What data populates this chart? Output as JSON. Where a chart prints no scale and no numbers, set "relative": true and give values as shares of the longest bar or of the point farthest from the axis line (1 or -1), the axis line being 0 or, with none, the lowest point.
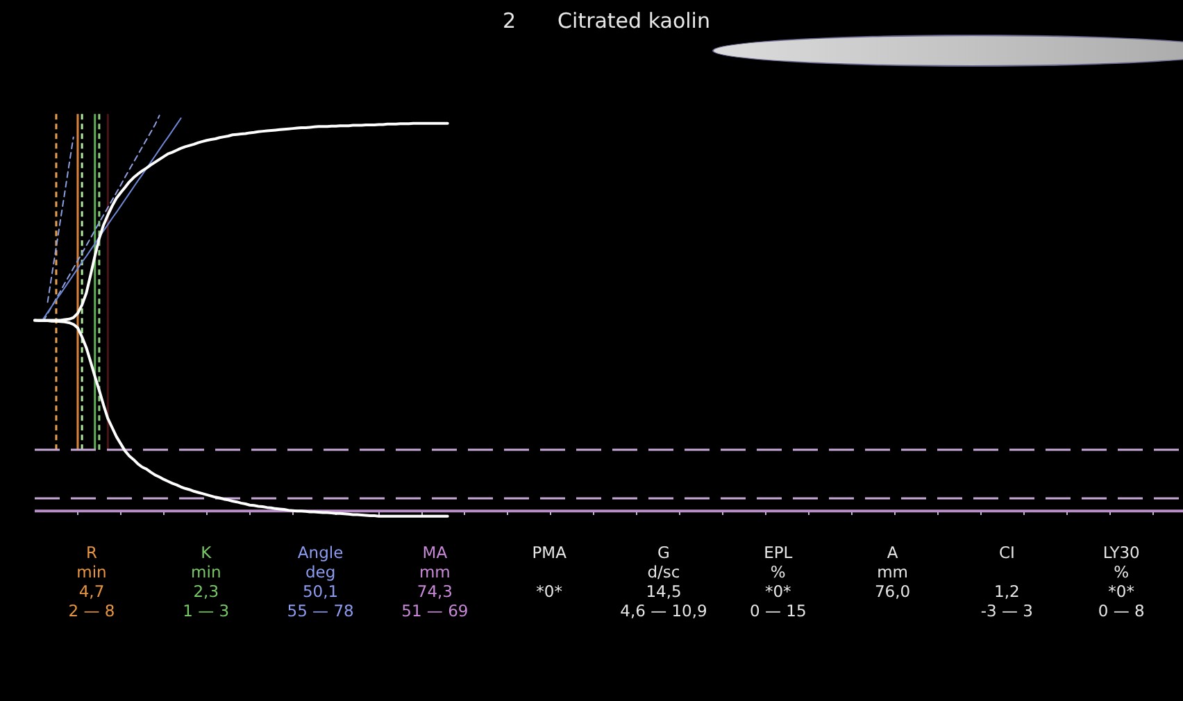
{
  "chart_data": {
    "type": "line",
    "title": "2 Citrated kaolin",
    "relative": true,
    "categories": [
      null,
      null,
      null,
      null,
      null,
      null,
      null,
      null,
      null,
      null,
      null,
      null,
      null,
      null,
      null,
      null,
      null,
      null,
      null,
      null,
      null,
      null,
      null,
      null,
      null,
      null,
      null,
      null,
      null,
      null,
      null,
      null,
      null,
      null,
      null,
      null,
      null,
      null,
      null,
      null,
      null,
      null,
      null,
      null,
      null,
      null,
      null,
      null,
      null,
      null,
      null,
      null,
      null,
      null,
      null,
      null,
      null,
      null,
      null,
      null,
      null,
      null,
      null,
      null,
      null,
      null,
      null,
      null,
      null,
      null,
      null,
      null,
      null,
      null,
      null,
      null,
      null,
      null,
      null,
      null,
      null,
      null,
      null,
      null,
      null,
      null,
      null,
      null,
      null,
      null,
      null,
      null,
      null,
      null,
      null,
      null,
      null,
      null,
      null,
      null,
      null,
      null,
      null,
      null,
      null,
      null,
      null,
      null,
      null,
      null,
      null,
      null,
      null,
      null,
      null,
      null,
      null,
      null,
      null,
      null,
      null,
      null,
      null,
      null,
      null,
      null,
      null,
      null,
      null,
      null,
      null,
      null,
      null,
      null,
      null,
      null,
      null,
      null,
      null,
      null,
      null,
      null,
      null,
      null,
      null,
      null,
      null,
      null,
      null,
      null,
      null,
      null,
      null,
      null,
      null,
      null,
      null,
      null,
      null,
      null,
      null,
      null,
      null,
      null,
      null,
      null,
      null,
      null,
      null,
      null,
      null,
      null,
      null,
      null,
      null,
      null,
      null,
      null,
      null,
      null,
      null,
      null,
      null,
      null,
      null,
      null,
      null,
      null,
      null,
      null,
      null,
      null,
      null,
      null,
      null,
      null,
      null,
      null,
      null,
      null,
      null,
      null,
      null,
      null,
      null,
      null,
      null,
      null,
      null,
      null,
      null,
      null,
      null,
      null,
      null,
      null,
      null,
      null,
      null,
      null,
      null,
      null,
      null,
      null,
      null,
      null,
      null,
      null,
      null,
      null,
      null,
      null,
      null,
      null,
      null,
      null,
      null,
      null,
      null,
      null,
      null,
      null,
      null,
      null,
      null,
      null,
      null,
      null,
      null,
      null,
      null,
      null,
      null,
      null,
      null,
      null,
      null,
      null,
      null,
      null,
      null,
      null,
      null,
      null,
      null,
      null,
      null,
      null
    ],
    "series": [
      {
        "color": "#ffffff",
        "values": [
          0.482,
          0.482,
          0.482,
          0.482,
          0.482,
          0.482,
          0.482,
          0.484,
          0.485,
          0.489,
          0.5,
          0.521,
          0.551,
          0.597,
          0.645,
          0.689,
          0.723,
          0.748,
          0.771,
          0.791,
          0.805,
          0.818,
          0.832,
          0.843,
          0.852,
          0.86,
          0.867,
          0.875,
          0.882,
          0.889,
          0.896,
          0.903,
          0.907,
          0.912,
          0.917,
          0.921,
          0.924,
          0.927,
          0.931,
          0.934,
          0.937,
          0.939,
          0.941,
          0.944,
          0.946,
          0.948,
          0.951,
          0.952,
          0.953,
          0.954,
          0.956,
          0.957,
          0.959,
          0.96,
          0.961,
          0.962,
          0.963,
          0.964,
          0.965,
          0.966,
          0.967,
          0.968,
          0.969,
          0.969,
          0.97,
          0.971,
          0.972,
          0.972,
          0.972,
          0.973,
          0.973,
          0.974,
          0.974,
          0.974,
          0.975,
          0.975,
          0.975,
          0.976,
          0.976,
          0.976,
          0.977,
          0.977,
          0.978,
          0.978,
          0.978,
          0.979,
          0.979,
          0.979,
          0.98,
          0.98,
          0.98,
          0.98,
          0.98,
          0.98,
          0.98,
          0.98,
          0.98,
          null,
          null,
          null,
          null,
          null,
          null,
          null,
          null,
          null,
          null,
          null,
          null,
          null,
          null,
          null,
          null,
          null,
          null,
          null,
          null,
          null,
          null,
          null,
          null,
          null,
          null,
          null,
          null,
          null,
          null,
          null,
          null,
          null,
          null,
          null,
          null,
          null,
          null,
          null,
          null,
          null,
          null,
          null,
          null,
          null,
          null,
          null,
          null,
          null,
          null,
          null,
          null,
          null,
          null,
          null,
          null,
          null,
          null,
          null,
          null,
          null,
          null,
          null,
          null,
          null,
          null,
          null,
          null,
          null,
          null,
          null,
          null,
          null,
          null,
          null,
          null,
          null,
          null,
          null,
          null,
          null,
          null,
          null,
          null,
          null,
          null,
          null,
          null,
          null,
          null,
          null,
          null,
          null,
          null,
          null,
          null,
          null,
          null,
          null,
          null,
          null,
          null,
          null,
          null,
          null,
          null,
          null,
          null,
          null,
          null,
          null,
          null,
          null,
          null,
          null,
          null,
          null,
          null,
          null,
          null,
          null,
          null,
          null,
          null,
          null,
          null,
          null,
          null,
          null,
          null,
          null,
          null,
          null,
          null,
          null,
          null,
          null,
          null,
          null,
          null,
          null,
          null,
          null,
          null,
          null,
          null,
          null,
          null,
          null,
          null,
          null,
          null,
          null,
          null,
          null,
          null,
          null,
          null,
          null,
          null,
          null,
          null,
          null,
          null,
          null,
          null,
          null,
          null,
          null,
          null,
          null
        ]
      },
      {
        "color": "#ffffff",
        "values": [
          0.482,
          0.481,
          0.481,
          0.481,
          0.48,
          0.48,
          0.479,
          0.478,
          0.476,
          0.472,
          0.463,
          0.44,
          0.413,
          0.377,
          0.34,
          0.305,
          0.268,
          0.234,
          0.211,
          0.188,
          0.17,
          0.152,
          0.139,
          0.13,
          0.119,
          0.111,
          0.106,
          0.098,
          0.091,
          0.086,
          0.08,
          0.075,
          0.07,
          0.066,
          0.061,
          0.057,
          0.054,
          0.05,
          0.047,
          0.044,
          0.041,
          0.038,
          0.035,
          0.033,
          0.03,
          0.028,
          0.025,
          0.023,
          0.02,
          0.018,
          0.015,
          0.014,
          0.012,
          0.011,
          0.009,
          0.008,
          0.006,
          0.005,
          0.004,
          0.002,
          0.001,
          0.0,
          0.0,
          -0.001,
          -0.002,
          -0.002,
          -0.003,
          -0.004,
          -0.004,
          -0.005,
          -0.006,
          -0.006,
          -0.007,
          -0.008,
          -0.009,
          -0.009,
          -0.01,
          -0.011,
          -0.012,
          -0.012,
          -0.013,
          -0.013,
          -0.013,
          -0.013,
          -0.013,
          -0.013,
          -0.013,
          -0.013,
          -0.013,
          -0.013,
          -0.013,
          -0.013,
          -0.013,
          -0.013,
          -0.013,
          -0.013,
          -0.013,
          null,
          null,
          null,
          null,
          null,
          null,
          null,
          null,
          null,
          null,
          null,
          null,
          null,
          null,
          null,
          null,
          null,
          null,
          null,
          null,
          null,
          null,
          null,
          null,
          null,
          null,
          null,
          null,
          null,
          null,
          null,
          null,
          null,
          null,
          null,
          null,
          null,
          null,
          null,
          null,
          null,
          null,
          null,
          null,
          null,
          null,
          null,
          null,
          null,
          null,
          null,
          null,
          null,
          null,
          null,
          null,
          null,
          null,
          null,
          null,
          null,
          null,
          null,
          null,
          null,
          null,
          null,
          null,
          null,
          null,
          null,
          null,
          null,
          null,
          null,
          null,
          null,
          null,
          null,
          null,
          null,
          null,
          null,
          null,
          null,
          null,
          null,
          null,
          null,
          null,
          null,
          null,
          null,
          null,
          null,
          null,
          null,
          null,
          null,
          null,
          null,
          null,
          null,
          null,
          null,
          null,
          null,
          null,
          null,
          null,
          null,
          null,
          null,
          null,
          null,
          null,
          null,
          null,
          null,
          null,
          null,
          null,
          null,
          null,
          null,
          null,
          null,
          null,
          null,
          null,
          null,
          null,
          null,
          null,
          null,
          null,
          null,
          null,
          null,
          null,
          null,
          null,
          null,
          null,
          null,
          null,
          null,
          null,
          null,
          null,
          null,
          null,
          null,
          null,
          null,
          null,
          null,
          null,
          null,
          null,
          null,
          null,
          null,
          null,
          null,
          null,
          null,
          null,
          null,
          null,
          null
        ]
      },
      {
        "color": "#7088d8",
        "values": [
          null,
          null,
          0.486,
          0.502,
          0.518,
          0.534,
          0.549,
          0.565,
          0.581,
          0.597,
          0.613,
          0.629,
          0.644,
          0.66,
          0.676,
          0.692,
          0.708,
          0.724,
          0.74,
          0.755,
          0.771,
          0.787,
          0.803,
          0.819,
          0.835,
          0.85,
          0.866,
          0.882,
          0.898,
          0.914,
          0.93,
          0.945,
          0.961,
          0.977,
          0.993,
          null,
          null,
          null,
          null,
          null,
          null,
          null,
          null,
          null,
          null,
          null,
          null,
          null,
          null,
          null,
          null,
          null,
          null,
          null,
          null,
          null,
          null,
          null,
          null,
          null,
          null,
          null,
          null,
          null,
          null,
          null,
          null,
          null,
          null,
          null,
          null,
          null,
          null,
          null,
          null,
          null,
          null,
          null,
          null,
          null,
          null,
          null,
          null,
          null,
          null,
          null,
          null,
          null,
          null,
          null,
          null,
          null,
          null,
          null,
          null,
          null,
          null,
          null,
          null,
          null,
          null,
          null,
          null,
          null,
          null,
          null,
          null,
          null,
          null,
          null,
          null,
          null,
          null,
          null,
          null,
          null,
          null,
          null,
          null,
          null,
          null,
          null,
          null,
          null,
          null,
          null,
          null,
          null,
          null,
          null,
          null,
          null,
          null,
          null,
          null,
          null,
          null,
          null,
          null,
          null,
          null,
          null,
          null,
          null,
          null,
          null,
          null,
          null,
          null,
          null,
          null,
          null,
          null,
          null,
          null,
          null,
          null,
          null,
          null,
          null,
          null,
          null,
          null,
          null,
          null,
          null,
          null,
          null,
          null,
          null,
          null,
          null,
          null,
          null,
          null,
          null,
          null,
          null,
          null,
          null,
          null,
          null,
          null,
          null,
          null,
          null,
          null,
          null,
          null,
          null,
          null,
          null,
          null,
          null,
          null,
          null,
          null,
          null,
          null,
          null,
          null,
          null,
          null,
          null,
          null,
          null,
          null,
          null,
          null,
          null,
          null,
          null,
          null,
          null,
          null,
          null,
          null,
          null,
          null,
          null,
          null,
          null,
          null,
          null,
          null,
          null,
          null,
          null,
          null,
          null,
          null,
          null,
          null,
          null,
          null,
          null,
          null,
          null,
          null,
          null,
          null,
          null,
          null,
          null,
          null,
          null,
          null,
          null,
          null,
          null,
          null,
          null,
          null,
          null,
          null,
          null,
          null,
          null,
          null,
          null,
          null,
          null,
          null,
          null,
          null,
          null,
          null,
          null
        ]
      },
      {
        "color": "#8ea0e0",
        "line_style": "dashed",
        "values": [
          null,
          null,
          0.48,
          0.499,
          0.518,
          0.537,
          0.556,
          0.576,
          0.595,
          0.614,
          0.633,
          0.652,
          0.671,
          0.69,
          0.71,
          0.729,
          0.748,
          0.767,
          0.786,
          0.805,
          0.824,
          0.844,
          0.863,
          0.882,
          0.901,
          0.92,
          0.939,
          0.958,
          0.977,
          1.0,
          null,
          null,
          null,
          null,
          null,
          null,
          null,
          null,
          null,
          null,
          null,
          null,
          null,
          null,
          null,
          null,
          null,
          null,
          null,
          null,
          null,
          null,
          null,
          null,
          null,
          null,
          null,
          null,
          null,
          null,
          null,
          null,
          null,
          null,
          null,
          null,
          null,
          null,
          null,
          null,
          null,
          null,
          null,
          null,
          null,
          null,
          null,
          null,
          null,
          null,
          null,
          null,
          null,
          null,
          null,
          null,
          null,
          null,
          null,
          null,
          null,
          null,
          null,
          null,
          null,
          null,
          null,
          null,
          null,
          null,
          null,
          null,
          null,
          null,
          null,
          null,
          null,
          null,
          null,
          null,
          null,
          null,
          null,
          null,
          null,
          null,
          null,
          null,
          null,
          null,
          null,
          null,
          null,
          null,
          null,
          null,
          null,
          null,
          null,
          null,
          null,
          null,
          null,
          null,
          null,
          null,
          null,
          null,
          null,
          null,
          null,
          null,
          null,
          null,
          null,
          null,
          null,
          null,
          null,
          null,
          null,
          null,
          null,
          null,
          null,
          null,
          null,
          null,
          null,
          null,
          null,
          null,
          null,
          null,
          null,
          null,
          null,
          null,
          null,
          null,
          null,
          null,
          null,
          null,
          null,
          null,
          null,
          null,
          null,
          null,
          null,
          null,
          null,
          null,
          null,
          null,
          null,
          null,
          null,
          null,
          null,
          null,
          null,
          null,
          null,
          null,
          null,
          null,
          null,
          null,
          null,
          null,
          null,
          null,
          null,
          null,
          null,
          null,
          null,
          null,
          null,
          null,
          null,
          null,
          null,
          null,
          null,
          null,
          null,
          null,
          null,
          null,
          null,
          null,
          null,
          null,
          null,
          null,
          null,
          null,
          null,
          null,
          null,
          null,
          null,
          null,
          null,
          null,
          null,
          null,
          null,
          null,
          null,
          null,
          null,
          null,
          null,
          null,
          null,
          null,
          null,
          null,
          null,
          null,
          null,
          null,
          null,
          null,
          null,
          null,
          null,
          null,
          null,
          null,
          null,
          null,
          null,
          null
        ]
      },
      {
        "color": "#8ea0e0",
        "line_style": "dashed",
        "values": [
          null,
          null,
          null,
          0.528,
          0.598,
          0.667,
          0.737,
          0.806,
          0.876,
          0.945,
          null,
          null,
          null,
          null,
          null,
          null,
          null,
          null,
          null,
          null,
          null,
          null,
          null,
          null,
          null,
          null,
          null,
          null,
          null,
          null,
          null,
          null,
          null,
          null,
          null,
          null,
          null,
          null,
          null,
          null,
          null,
          null,
          null,
          null,
          null,
          null,
          null,
          null,
          null,
          null,
          null,
          null,
          null,
          null,
          null,
          null,
          null,
          null,
          null,
          null,
          null,
          null,
          null,
          null,
          null,
          null,
          null,
          null,
          null,
          null,
          null,
          null,
          null,
          null,
          null,
          null,
          null,
          null,
          null,
          null,
          null,
          null,
          null,
          null,
          null,
          null,
          null,
          null,
          null,
          null,
          null,
          null,
          null,
          null,
          null,
          null,
          null,
          null,
          null,
          null,
          null,
          null,
          null,
          null,
          null,
          null,
          null,
          null,
          null,
          null,
          null,
          null,
          null,
          null,
          null,
          null,
          null,
          null,
          null,
          null,
          null,
          null,
          null,
          null,
          null,
          null,
          null,
          null,
          null,
          null,
          null,
          null,
          null,
          null,
          null,
          null,
          null,
          null,
          null,
          null,
          null,
          null,
          null,
          null,
          null,
          null,
          null,
          null,
          null,
          null,
          null,
          null,
          null,
          null,
          null,
          null,
          null,
          null,
          null,
          null,
          null,
          null,
          null,
          null,
          null,
          null,
          null,
          null,
          null,
          null,
          null,
          null,
          null,
          null,
          null,
          null,
          null,
          null,
          null,
          null,
          null,
          null,
          null,
          null,
          null,
          null,
          null,
          null,
          null,
          null,
          null,
          null,
          null,
          null,
          null,
          null,
          null,
          null,
          null,
          null,
          null,
          null,
          null,
          null,
          null,
          null,
          null,
          null,
          null,
          null,
          null,
          null,
          null,
          null,
          null,
          null,
          null,
          null,
          null,
          null,
          null,
          null,
          null,
          null,
          null,
          null,
          null,
          null,
          null,
          null,
          null,
          null,
          null,
          null,
          null,
          null,
          null,
          null,
          null,
          null,
          null,
          null,
          null,
          null,
          null,
          null,
          null,
          null,
          null,
          null,
          null,
          null,
          null,
          null,
          null,
          null,
          null,
          null,
          null,
          null,
          null,
          null,
          null,
          null,
          null,
          null,
          null,
          null
        ]
      }
    ],
    "ref_lines": [
      {
        "axis": "y",
        "value": 0.155,
        "color": "#c8a8d8",
        "line_style": "dashed"
      },
      {
        "axis": "y",
        "value": 0.032,
        "color": "#c8a8d8",
        "line_style": "dashed"
      },
      {
        "axis": "y",
        "value": 0,
        "color": "#b890c8"
      }
    ],
    "annotations": [
      "R\nmin\n4,7\n2 — 8",
      "K\nmin\n2,3\n1 — 3",
      "Angle\ndeg\n50,1\n55 — 78",
      "MA\nmm\n74,3\n51 — 69",
      "PMA\n\n*0*\n",
      "G\nd/sc\n14,5\n4,6 — 10,9",
      "EPL\n%\n*0*\n0 — 15",
      "A\nmm\n76,0\n",
      "CI\n\n1,2\n-3 — 3",
      "LY30\n%\n*0*\n0 — 8"
    ]
  }
}
